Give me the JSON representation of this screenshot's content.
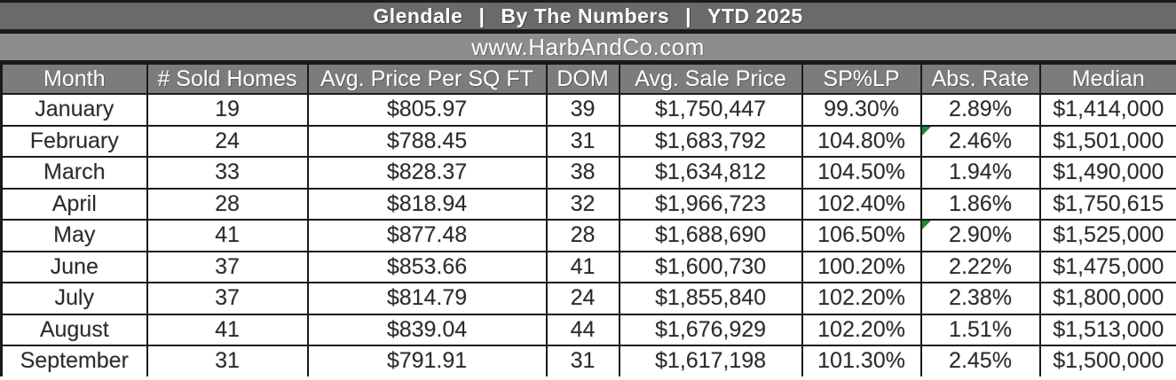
{
  "title": {
    "parts": [
      "Glendale",
      "By The Numbers",
      "YTD 2025"
    ],
    "separator": "|"
  },
  "subtitle": "www.HarbAndCo.com",
  "colors": {
    "title_bar": "#6a6a6a",
    "subtitle_bar": "#8d8d8d",
    "header_bar": "#7c7c7c",
    "flag_green": "#1f8a35",
    "border": "#1a1a1a"
  },
  "chart_data": {
    "type": "table",
    "title": "Glendale | By The Numbers | YTD 2025",
    "subtitle": "www.HarbAndCo.com",
    "columns": [
      "Month",
      "# Sold Homes",
      "Avg. Price Per SQ FT",
      "DOM",
      "Avg. Sale Price",
      "SP%LP",
      "Abs. Rate",
      "Median"
    ],
    "rows": [
      [
        "January",
        "19",
        "$805.97",
        "39",
        "$1,750,447",
        "99.30%",
        "2.89%",
        "$1,414,000"
      ],
      [
        "February",
        "24",
        "$788.45",
        "31",
        "$1,683,792",
        "104.80%",
        "2.46%",
        "$1,501,000"
      ],
      [
        "March",
        "33",
        "$828.37",
        "38",
        "$1,634,812",
        "104.50%",
        "1.94%",
        "$1,490,000"
      ],
      [
        "April",
        "28",
        "$818.94",
        "32",
        "$1,966,723",
        "102.40%",
        "1.86%",
        "$1,750,615"
      ],
      [
        "May",
        "41",
        "$877.48",
        "28",
        "$1,688,690",
        "106.50%",
        "2.90%",
        "$1,525,000"
      ],
      [
        "June",
        "37",
        "$853.66",
        "41",
        "$1,600,730",
        "100.20%",
        "2.22%",
        "$1,475,000"
      ],
      [
        "July",
        "37",
        "$814.79",
        "24",
        "$1,855,840",
        "102.20%",
        "2.38%",
        "$1,800,000"
      ],
      [
        "August",
        "41",
        "$839.04",
        "44",
        "$1,676,929",
        "102.20%",
        "1.51%",
        "$1,513,000"
      ],
      [
        "September",
        "31",
        "$791.91",
        "31",
        "$1,617,198",
        "101.30%",
        "2.45%",
        "$1,500,000"
      ]
    ],
    "flagged_cells": [
      {
        "row": 1,
        "col": 6
      },
      {
        "row": 4,
        "col": 6
      }
    ],
    "layout_hints": {
      "grid": true,
      "all_cells_centered": true
    }
  }
}
